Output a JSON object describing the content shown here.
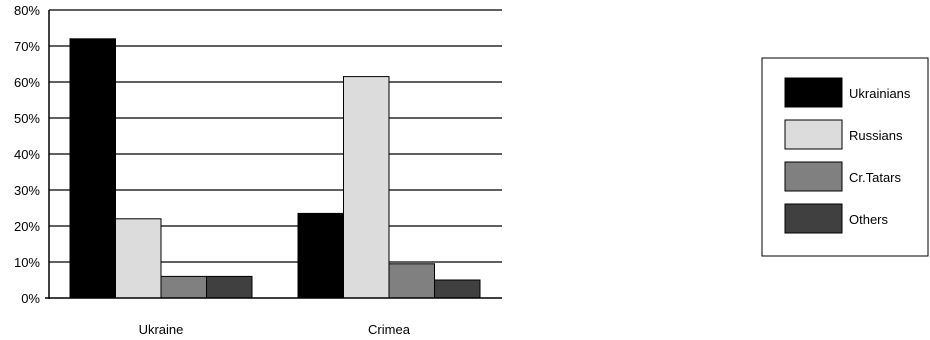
{
  "chart_data": {
    "type": "bar",
    "categories": [
      "Ukraine",
      "Crimea"
    ],
    "series": [
      {
        "name": "Ukrainians",
        "values": [
          72,
          23.5
        ],
        "color": "#000000"
      },
      {
        "name": "Russians",
        "values": [
          22,
          61.5
        ],
        "color": "#dcdcdc"
      },
      {
        "name": "Cr.Tatars",
        "values": [
          6,
          9.5
        ],
        "color": "#808080"
      },
      {
        "name": "Others",
        "values": [
          6,
          5
        ],
        "color": "#404040"
      }
    ],
    "title": "",
    "xlabel": "",
    "ylabel": "",
    "ylim": [
      0,
      80
    ],
    "yticks": [
      "0%",
      "10%",
      "20%",
      "30%",
      "40%",
      "50%",
      "60%",
      "70%",
      "80%"
    ],
    "grid": "horizontal",
    "legend_position": "right"
  }
}
